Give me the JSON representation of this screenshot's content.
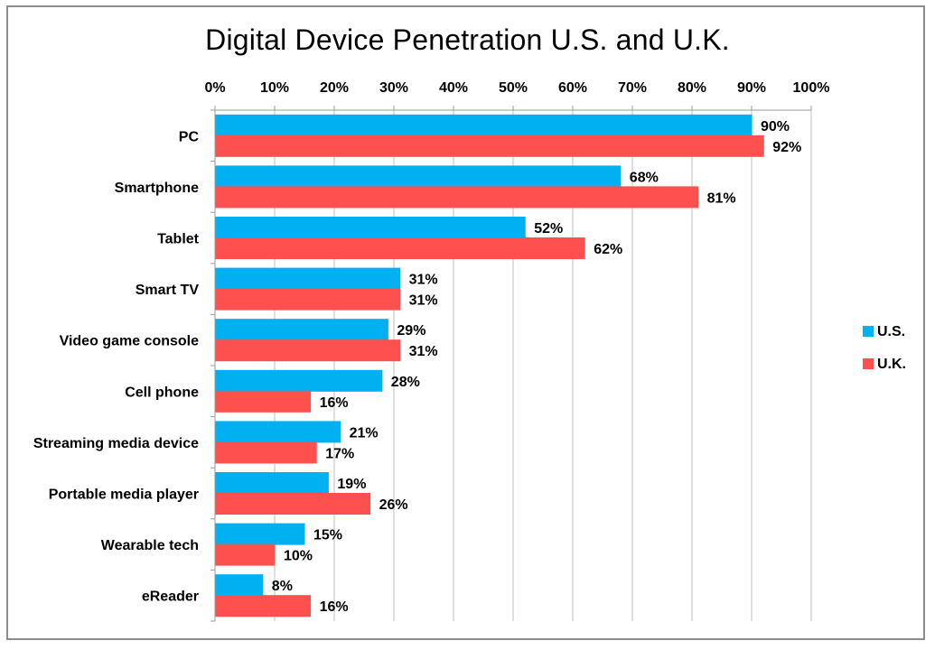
{
  "chart_data": {
    "type": "bar",
    "orientation": "horizontal",
    "title": "Digital Device Penetration U.S. and U.K.",
    "categories": [
      "PC",
      "Smartphone",
      "Tablet",
      "Smart TV",
      "Video game console",
      "Cell phone",
      "Streaming media device",
      "Portable media player",
      "Wearable tech",
      "eReader"
    ],
    "series": [
      {
        "name": "U.S.",
        "color": "#00b0f0",
        "values": [
          90,
          68,
          52,
          31,
          29,
          28,
          21,
          19,
          15,
          8
        ],
        "labels": [
          "90%",
          "68%",
          "52%",
          "31%",
          "29%",
          "28%",
          "21%",
          "19%",
          "15%",
          "8%"
        ]
      },
      {
        "name": "U.K.",
        "color": "#ff5050",
        "values": [
          92,
          81,
          62,
          31,
          31,
          16,
          17,
          26,
          10,
          16
        ],
        "labels": [
          "92%",
          "81%",
          "62%",
          "31%",
          "31%",
          "16%",
          "17%",
          "26%",
          "10%",
          "16%"
        ]
      }
    ],
    "xlim": [
      0,
      100
    ],
    "x_ticks": [
      0,
      10,
      20,
      30,
      40,
      50,
      60,
      70,
      80,
      90,
      100
    ],
    "x_tick_labels": [
      "0%",
      "10%",
      "20%",
      "30%",
      "40%",
      "50%",
      "60%",
      "70%",
      "80%",
      "90%",
      "100%"
    ],
    "x_axis_position": "top",
    "grid": true,
    "legend_position": "right"
  }
}
